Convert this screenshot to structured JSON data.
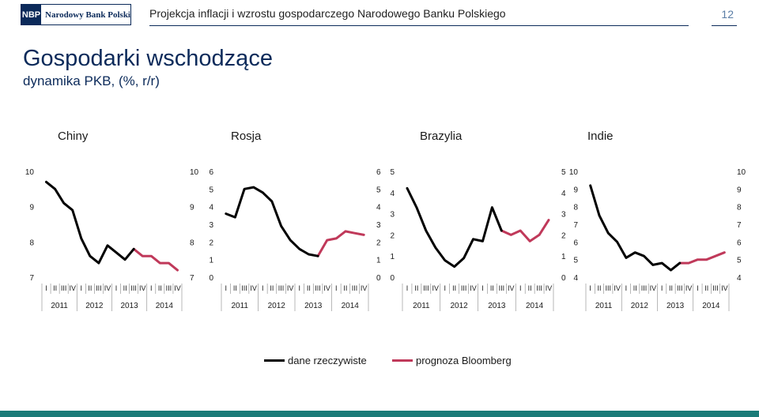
{
  "header": {
    "logo_mark": "NBP",
    "logo_text": "Narodowy Bank Polski",
    "title": "Projekcja inflacji i wzrostu gospodarczego Narodowego Banku Polskiego",
    "page_number": "12"
  },
  "page": {
    "title": "Gospodarki wschodzące",
    "subtitle": "dynamika PKB, (%, r/r)"
  },
  "legend": {
    "actual": "dane rzeczywiste",
    "forecast": "prognoza Bloomberg"
  },
  "colors": {
    "actual": "#000000",
    "forecast": "#c0395a",
    "brand": "#0b2a5a",
    "bottom_bar": "#1a7b78"
  },
  "chart_data": [
    {
      "type": "line",
      "title": "Chiny",
      "x_quarter_labels": [
        "I",
        "II",
        "III",
        "IV",
        "I",
        "II",
        "III",
        "IV",
        "I",
        "II",
        "III",
        "IV",
        "I",
        "II",
        "III",
        "IV"
      ],
      "x_year_labels": [
        "2011",
        "2012",
        "2013",
        "2014"
      ],
      "ylim": [
        7,
        10
      ],
      "yticks": [
        "7",
        "8",
        "9",
        "10"
      ],
      "series": [
        {
          "key": "actual",
          "start_index": 0,
          "values": [
            9.7,
            9.5,
            9.1,
            8.9,
            8.1,
            7.6,
            7.4,
            7.9,
            7.7,
            7.5,
            7.8
          ]
        },
        {
          "key": "forecast",
          "start_index": 10,
          "values": [
            7.8,
            7.6,
            7.6,
            7.4,
            7.4,
            7.2
          ]
        }
      ]
    },
    {
      "type": "line",
      "title": "Rosja",
      "x_quarter_labels": [
        "I",
        "II",
        "III",
        "IV",
        "I",
        "II",
        "III",
        "IV",
        "I",
        "II",
        "III",
        "IV",
        "I",
        "II",
        "III",
        "IV"
      ],
      "x_year_labels": [
        "2011",
        "2012",
        "2013",
        "2014"
      ],
      "ylim": [
        0,
        6
      ],
      "yticks": [
        "0",
        "1",
        "2",
        "3",
        "4",
        "5",
        "6"
      ],
      "series": [
        {
          "key": "actual",
          "start_index": 0,
          "values": [
            3.6,
            3.4,
            5.0,
            5.1,
            4.8,
            4.3,
            2.9,
            2.1,
            1.6,
            1.3,
            1.2
          ]
        },
        {
          "key": "forecast",
          "start_index": 10,
          "values": [
            1.2,
            2.1,
            2.2,
            2.6,
            2.5,
            2.4
          ]
        }
      ]
    },
    {
      "type": "line",
      "title": "Brazylia",
      "x_quarter_labels": [
        "I",
        "II",
        "III",
        "IV",
        "I",
        "II",
        "III",
        "IV",
        "I",
        "II",
        "III",
        "IV",
        "I",
        "II",
        "III",
        "IV"
      ],
      "x_year_labels": [
        "2011",
        "2012",
        "2013",
        "2014"
      ],
      "ylim": [
        0,
        5
      ],
      "yticks": [
        "0",
        "1",
        "2",
        "3",
        "4",
        "5"
      ],
      "series": [
        {
          "key": "actual",
          "start_index": 0,
          "values": [
            4.2,
            3.3,
            2.2,
            1.4,
            0.8,
            0.5,
            0.9,
            1.8,
            1.7,
            3.3,
            2.2
          ]
        },
        {
          "key": "forecast",
          "start_index": 10,
          "values": [
            2.2,
            2.0,
            2.2,
            1.7,
            2.0,
            2.7
          ]
        }
      ]
    },
    {
      "type": "line",
      "title": "Indie",
      "x_quarter_labels": [
        "I",
        "II",
        "III",
        "IV",
        "I",
        "II",
        "III",
        "IV",
        "I",
        "II",
        "III",
        "IV",
        "I",
        "II",
        "III",
        "IV"
      ],
      "x_year_labels": [
        "2011",
        "2012",
        "2013",
        "2014"
      ],
      "ylim": [
        4,
        10
      ],
      "yticks": [
        "4",
        "5",
        "6",
        "7",
        "8",
        "9",
        "10"
      ],
      "series": [
        {
          "key": "actual",
          "start_index": 0,
          "values": [
            9.2,
            7.5,
            6.5,
            6.0,
            5.1,
            5.4,
            5.2,
            4.7,
            4.8,
            4.4,
            4.8
          ]
        },
        {
          "key": "forecast",
          "start_index": 10,
          "values": [
            4.8,
            4.8,
            5.0,
            5.0,
            5.2,
            5.4
          ]
        }
      ]
    }
  ]
}
